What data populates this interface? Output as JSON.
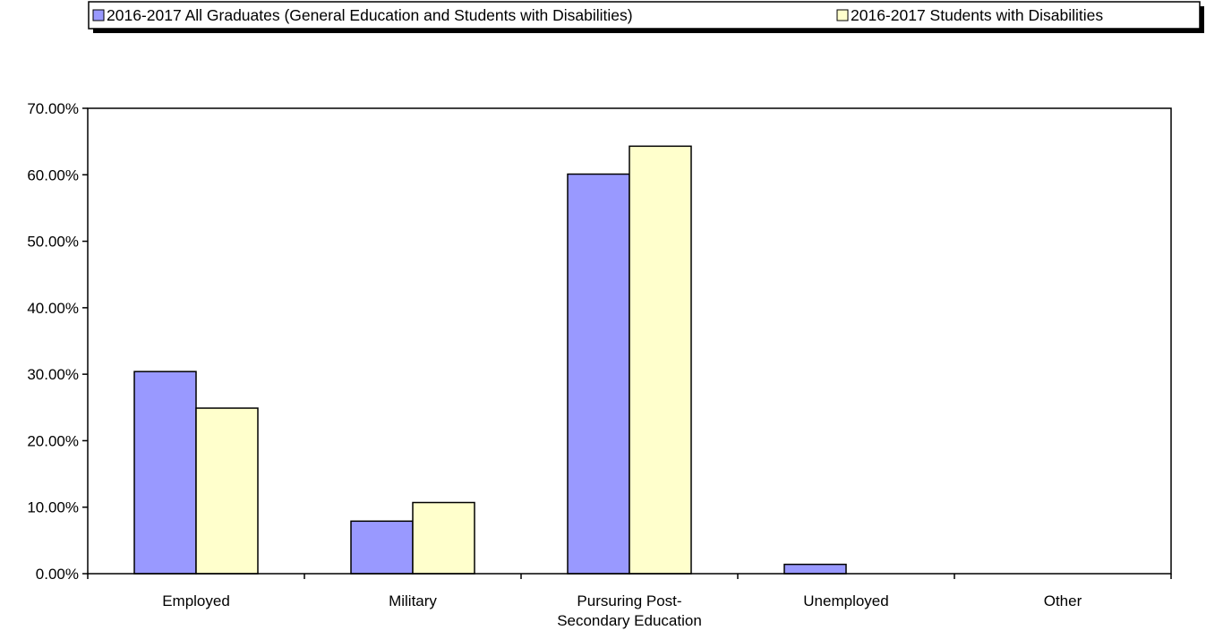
{
  "chart_data": {
    "type": "bar",
    "categories": [
      [
        "Employed"
      ],
      [
        "Military"
      ],
      [
        "Pursuring Post-",
        "Secondary Education"
      ],
      [
        "Unemployed"
      ],
      [
        "Other"
      ]
    ],
    "series": [
      {
        "name": "2016-2017 All Graduates (General Education and Students with Disabilities)",
        "values": [
          0.304,
          0.079,
          0.601,
          0.014,
          0.0
        ],
        "color": "#9999ff"
      },
      {
        "name": "2016-2017 Students with Disabilities",
        "values": [
          0.249,
          0.107,
          0.643,
          0.0,
          0.0
        ],
        "color": "#ffffcc"
      }
    ],
    "yticks": [
      "0.00%",
      "10.00%",
      "20.00%",
      "30.00%",
      "40.00%",
      "50.00%",
      "60.00%",
      "70.00%"
    ],
    "ylim": [
      0,
      0.7
    ],
    "legend_position": "top",
    "grid": false
  }
}
